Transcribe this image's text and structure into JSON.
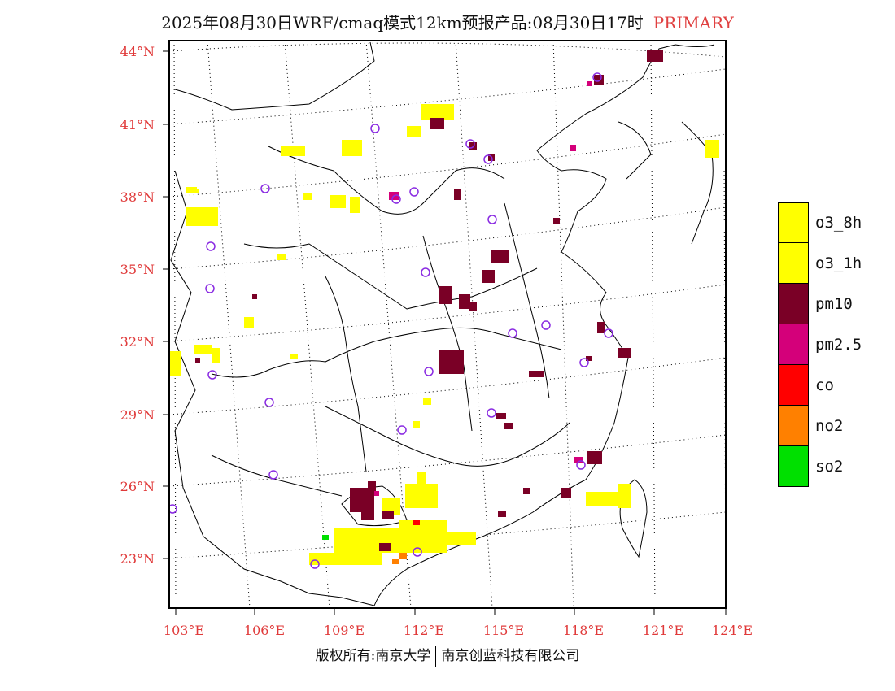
{
  "title": {
    "text": "2025年08月30日WRF/cmaq模式12km预报产品:08月30日17时",
    "tag": "PRIMARY",
    "tag_color": "#e04040"
  },
  "map": {
    "lat_labels": [
      "44°N",
      "41°N",
      "38°N",
      "35°N",
      "32°N",
      "29°N",
      "26°N",
      "23°N"
    ],
    "lon_labels": [
      "103°E",
      "106°E",
      "109°E",
      "112°E",
      "115°E",
      "118°E",
      "121°E",
      "124°E"
    ],
    "tick_color": "#e03a3a"
  },
  "legend": [
    {
      "label": "o3_8h",
      "color": "#ffff00"
    },
    {
      "label": "o3_1h",
      "color": "#ffff00"
    },
    {
      "label": "pm10",
      "color": "#7a0026"
    },
    {
      "label": "pm2.5",
      "color": "#d4007a"
    },
    {
      "label": "co",
      "color": "#ff0000"
    },
    {
      "label": "no2",
      "color": "#ff8000"
    },
    {
      "label": "so2",
      "color": "#00e000"
    }
  ],
  "footer": {
    "left": "版权所有:南京大学",
    "right": "南京创蓝科技有限公司"
  }
}
